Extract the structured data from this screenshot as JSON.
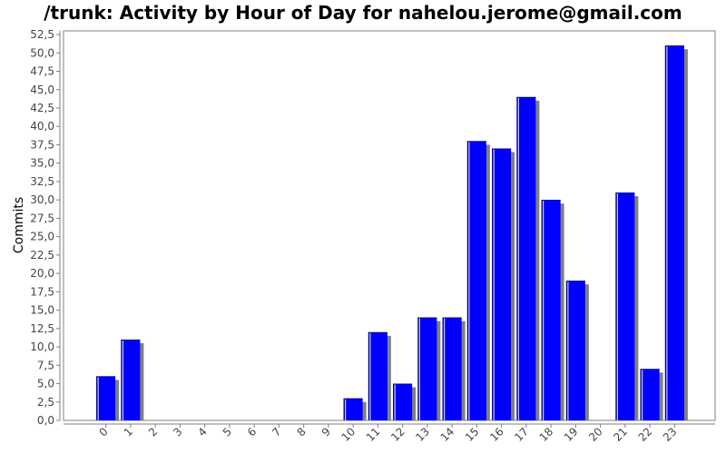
{
  "chart_data": {
    "type": "bar",
    "title": "/trunk: Activity by Hour of Day for nahelou.jerome@gmail.com",
    "xlabel": "",
    "ylabel": "Commits",
    "categories": [
      "0",
      "1",
      "2",
      "3",
      "4",
      "5",
      "6",
      "7",
      "8",
      "9",
      "10",
      "11",
      "12",
      "13",
      "14",
      "15",
      "16",
      "17",
      "18",
      "19",
      "20",
      "21",
      "22",
      "23"
    ],
    "values": [
      6,
      11,
      0,
      0,
      0,
      0,
      0,
      0,
      0,
      0,
      3,
      12,
      5,
      14,
      14,
      38,
      37,
      44,
      30,
      19,
      0,
      31,
      7,
      51
    ],
    "ylim": [
      0,
      53
    ],
    "yticks": [
      "0,0",
      "2,5",
      "5,0",
      "7,5",
      "10,0",
      "12,5",
      "15,0",
      "17,5",
      "20,0",
      "22,5",
      "25,0",
      "27,5",
      "30,0",
      "32,5",
      "35,0",
      "37,5",
      "40,0",
      "42,5",
      "45,0",
      "47,5",
      "50,0",
      "52,5"
    ],
    "ytick_values": [
      0,
      2.5,
      5,
      7.5,
      10,
      12.5,
      15,
      17.5,
      20,
      22.5,
      25,
      27.5,
      30,
      32.5,
      35,
      37.5,
      40,
      42.5,
      45,
      47.5,
      50,
      52.5
    ],
    "grid": false,
    "legend": "none",
    "colors": {
      "bar": "#0000ff",
      "bar_edge": "#000080",
      "bar_highlight": "#ccccff",
      "shadow": "#808080",
      "axis": "#808080",
      "tick_text": "#444444"
    }
  }
}
